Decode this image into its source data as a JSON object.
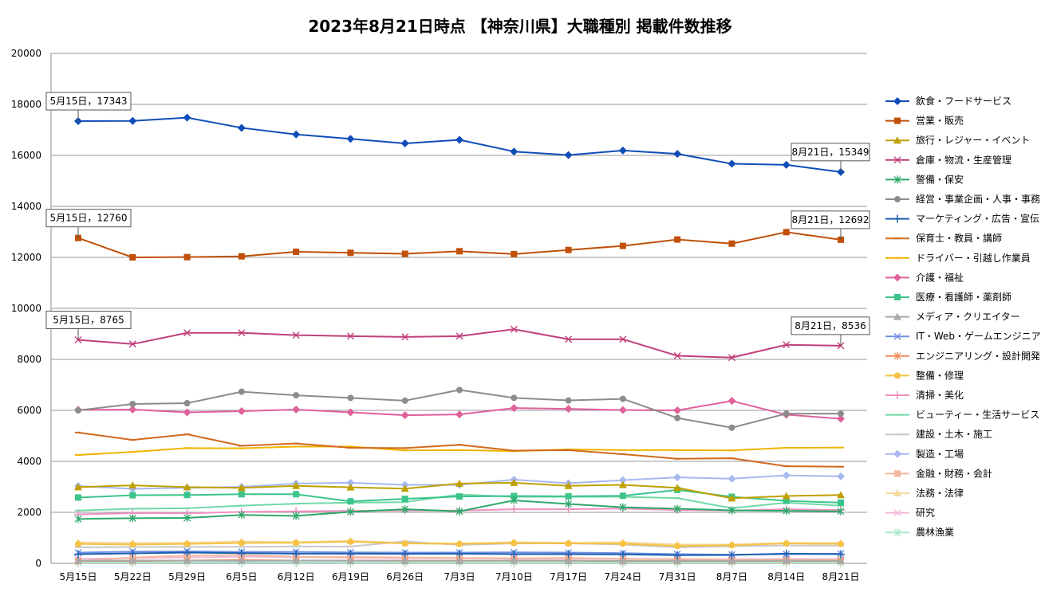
{
  "chart_data": {
    "type": "line",
    "title": "2023年8月21日時点 【神奈川県】大職種別 掲載件数推移",
    "xlabel": "",
    "ylabel": "",
    "ylim": [
      0,
      20000
    ],
    "y_ticks": [
      "0",
      "2000",
      "4000",
      "6000",
      "8000",
      "10000",
      "12000",
      "14000",
      "16000",
      "18000",
      "20000"
    ],
    "grid": true,
    "legend_position": "right",
    "categories": [
      "5月15日",
      "5月22日",
      "5月29日",
      "6月5日",
      "6月12日",
      "6月19日",
      "6月26日",
      "7月3日",
      "7月10日",
      "7月17日",
      "7月24日",
      "7月31日",
      "8月7日",
      "8月14日",
      "8月21日"
    ],
    "series": [
      {
        "name": "飲食・フードサービス",
        "color": "#0F4DB8",
        "marker": "diamond",
        "values": [
          17343,
          17350,
          17480,
          17080,
          16820,
          16650,
          16470,
          16610,
          16150,
          16010,
          16190,
          16060,
          15670,
          15630,
          15349
        ]
      },
      {
        "name": "営業・販売",
        "color": "#C0500A",
        "marker": "square",
        "values": [
          12760,
          12000,
          12010,
          12040,
          12220,
          12180,
          12140,
          12240,
          12130,
          12290,
          12450,
          12700,
          12540,
          12990,
          12692
        ]
      },
      {
        "name": "旅行・レジャー・イベント",
        "color": "#BFA000",
        "marker": "triangle",
        "values": [
          2990,
          3060,
          2990,
          2960,
          3040,
          2980,
          2930,
          3130,
          3160,
          3040,
          3080,
          2960,
          2550,
          2640,
          2680
        ]
      },
      {
        "name": "倉庫・物流・生産管理",
        "color": "#C0407A",
        "marker": "x",
        "values": [
          8765,
          8600,
          9040,
          9040,
          8950,
          8910,
          8880,
          8910,
          9180,
          8790,
          8790,
          8140,
          8070,
          8570,
          8536
        ]
      },
      {
        "name": "警備・保安",
        "color": "#2EA86A",
        "marker": "star",
        "values": [
          1740,
          1770,
          1780,
          1900,
          1860,
          2020,
          2120,
          2040,
          2470,
          2330,
          2200,
          2140,
          2080,
          2060,
          2040
        ]
      },
      {
        "name": "経営・事業企画・人事・事務",
        "color": "#8C8C8C",
        "marker": "circle",
        "values": [
          6000,
          6250,
          6280,
          6730,
          6590,
          6490,
          6380,
          6800,
          6490,
          6390,
          6450,
          5700,
          5320,
          5870,
          5870
        ]
      },
      {
        "name": "マーケティング・広告・宣伝",
        "color": "#1D5FB0",
        "marker": "plus",
        "values": [
          360,
          390,
          420,
          400,
          380,
          380,
          370,
          380,
          360,
          360,
          350,
          320,
          330,
          380,
          360
        ]
      },
      {
        "name": "保育士・教員・講師",
        "color": "#D2691E",
        "marker": "dash",
        "values": [
          5130,
          4840,
          5060,
          4610,
          4700,
          4530,
          4520,
          4650,
          4420,
          4440,
          4280,
          4100,
          4120,
          3810,
          3790
        ]
      },
      {
        "name": "ドライバー・引越し作業員",
        "color": "#F0B400",
        "marker": "dash",
        "values": [
          4250,
          4370,
          4520,
          4510,
          4580,
          4580,
          4430,
          4440,
          4400,
          4470,
          4440,
          4440,
          4430,
          4530,
          4540
        ]
      },
      {
        "name": "介護・福祉",
        "color": "#E0609A",
        "marker": "diamond",
        "values": [
          6020,
          6030,
          5920,
          5970,
          6030,
          5920,
          5810,
          5840,
          6090,
          6060,
          6010,
          6000,
          6370,
          5830,
          5670
        ]
      },
      {
        "name": "医療・看護師・薬剤師",
        "color": "#3CC48C",
        "marker": "square",
        "values": [
          2580,
          2670,
          2680,
          2710,
          2710,
          2430,
          2530,
          2620,
          2640,
          2630,
          2650,
          2880,
          2610,
          2450,
          2380
        ]
      },
      {
        "name": "メディア・クリエイター",
        "color": "#A8A8A8",
        "marker": "triangle",
        "values": [
          110,
          110,
          110,
          100,
          110,
          100,
          100,
          100,
          110,
          100,
          100,
          100,
          100,
          110,
          100
        ]
      },
      {
        "name": "IT・Web・ゲームエンジニア",
        "color": "#6E8FE0",
        "marker": "x",
        "values": [
          420,
          460,
          470,
          450,
          450,
          430,
          420,
          420,
          430,
          420,
          400,
          360,
          340,
          360,
          380
        ]
      },
      {
        "name": "エンジニアリング・設計開発",
        "color": "#F08C5C",
        "marker": "star",
        "values": [
          90,
          90,
          110,
          130,
          110,
          110,
          100,
          100,
          100,
          100,
          90,
          90,
          90,
          90,
          90
        ]
      },
      {
        "name": "整備・修理",
        "color": "#F5C242",
        "marker": "circle",
        "values": [
          760,
          740,
          760,
          800,
          810,
          850,
          780,
          760,
          800,
          780,
          770,
          680,
          710,
          780,
          760
        ]
      },
      {
        "name": "清掃・美化",
        "color": "#F090C0",
        "marker": "plus",
        "values": [
          1920,
          1970,
          1960,
          2020,
          2040,
          2060,
          2070,
          2070,
          2120,
          2120,
          2150,
          2090,
          2070,
          2120,
          2090
        ]
      },
      {
        "name": "ビューティー・生活サービス",
        "color": "#70D8A8",
        "marker": "dash",
        "values": [
          2070,
          2140,
          2160,
          2260,
          2340,
          2380,
          2400,
          2700,
          2610,
          2610,
          2610,
          2560,
          2160,
          2380,
          2260
        ]
      },
      {
        "name": "建設・土木・施工",
        "color": "#C8C8C8",
        "marker": "dash",
        "values": [
          630,
          640,
          650,
          650,
          660,
          660,
          860,
          720,
          780,
          780,
          740,
          630,
          670,
          700,
          690
        ]
      },
      {
        "name": "製造・工場",
        "color": "#A8B8F0",
        "marker": "diamond",
        "values": [
          3030,
          2920,
          2960,
          3000,
          3130,
          3160,
          3080,
          3080,
          3280,
          3140,
          3260,
          3370,
          3320,
          3450,
          3410
        ]
      },
      {
        "name": "金融・財務・会計",
        "color": "#F5B8A0",
        "marker": "square",
        "values": [
          90,
          230,
          300,
          330,
          260,
          250,
          230,
          210,
          200,
          210,
          180,
          160,
          140,
          140,
          140
        ]
      },
      {
        "name": "法務・法律",
        "color": "#F5D8A0",
        "marker": "triangle",
        "values": [
          820,
          800,
          810,
          860,
          830,
          880,
          800,
          780,
          830,
          810,
          830,
          740,
          740,
          800,
          800
        ]
      },
      {
        "name": "研究",
        "color": "#F5B8D8",
        "marker": "x",
        "values": [
          180,
          200,
          230,
          260,
          240,
          220,
          200,
          200,
          180,
          180,
          180,
          170,
          160,
          170,
          170
        ]
      },
      {
        "name": "農林漁業",
        "color": "#A8E8C8",
        "marker": "star",
        "values": [
          30,
          30,
          40,
          40,
          40,
          30,
          30,
          30,
          30,
          30,
          30,
          30,
          30,
          30,
          30
        ]
      }
    ],
    "annotations": [
      {
        "series": 0,
        "point": 0,
        "text": "5月15日，17343"
      },
      {
        "series": 0,
        "point": 14,
        "text": "8月21日，15349"
      },
      {
        "series": 1,
        "point": 0,
        "text": "5月15日，12760"
      },
      {
        "series": 1,
        "point": 14,
        "text": "8月21日，12692"
      },
      {
        "series": 3,
        "point": 0,
        "text": "5月15日，8765"
      },
      {
        "series": 3,
        "point": 14,
        "text": "8月21日，8536"
      }
    ]
  }
}
